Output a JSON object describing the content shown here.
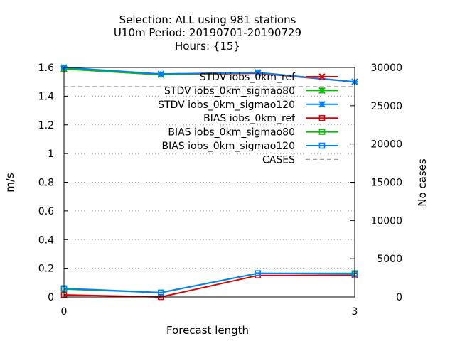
{
  "chart_data": {
    "type": "line",
    "title_lines": [
      "Selection: ALL using   981 stations",
      "U10m   Period: 20190701-20190729",
      "Hours: {15}"
    ],
    "xlabel": "Forecast length",
    "ylabel": "m/s",
    "y2label": "No cases",
    "x": [
      0,
      1,
      2,
      3
    ],
    "xlim": [
      0,
      3
    ],
    "ylim": [
      0,
      1.6
    ],
    "y2lim": [
      0,
      30000
    ],
    "xticks": [
      "0",
      "3"
    ],
    "yticks": [
      "0",
      "0.2",
      "0.4",
      "0.6",
      "0.8",
      "1",
      "1.2",
      "1.4",
      "1.6"
    ],
    "y2ticks": [
      "0",
      "5000",
      "10000",
      "15000",
      "20000",
      "25000",
      "30000"
    ],
    "grid": true,
    "legend_position": "top-right",
    "series": [
      {
        "name": "STDV iobs_0km_ref",
        "axis": "y",
        "color": "#e00000",
        "marker": "x",
        "values": [
          1.59,
          1.55,
          1.56,
          1.5
        ]
      },
      {
        "name": "STDV iobs_0km_sigmao80",
        "axis": "y",
        "color": "#00c000",
        "marker": "star",
        "values": [
          1.59,
          1.55,
          1.565,
          1.5
        ]
      },
      {
        "name": "STDV iobs_0km_sigmao120",
        "axis": "y",
        "color": "#0080ff",
        "marker": "star",
        "values": [
          1.6,
          1.555,
          1.565,
          1.5
        ]
      },
      {
        "name": "BIAS iobs_0km_ref",
        "axis": "y",
        "color": "#e00000",
        "marker": "square",
        "values": [
          0.015,
          0.0,
          0.15,
          0.15
        ]
      },
      {
        "name": "BIAS iobs_0km_sigmao80",
        "axis": "y",
        "color": "#00c000",
        "marker": "square",
        "values": [
          0.055,
          0.03,
          0.165,
          0.165
        ]
      },
      {
        "name": "BIAS iobs_0km_sigmao120",
        "axis": "y",
        "color": "#0080ff",
        "marker": "square",
        "values": [
          0.06,
          0.03,
          0.165,
          0.16
        ]
      },
      {
        "name": "CASES",
        "axis": "y2",
        "color": "#a0a0a0",
        "marker": "none",
        "dashed": true,
        "values": [
          27500,
          27500,
          27500,
          27500
        ]
      }
    ]
  }
}
